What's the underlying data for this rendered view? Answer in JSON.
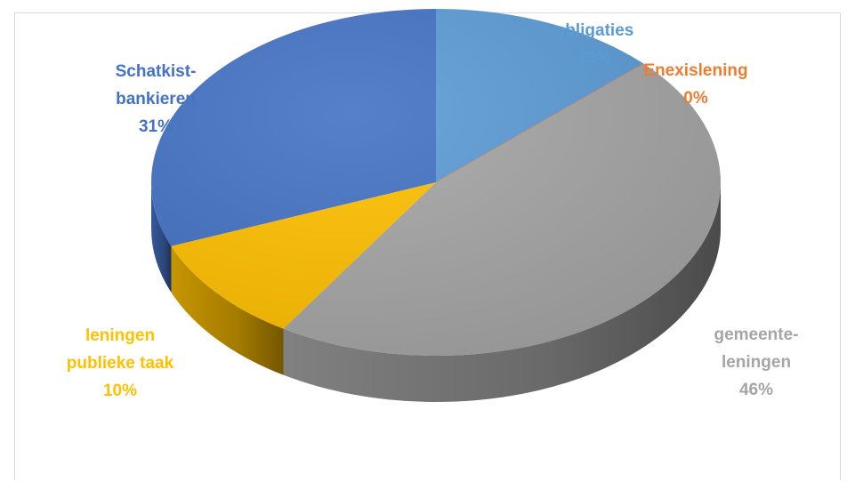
{
  "chart_data": {
    "type": "pie",
    "title": "",
    "legend": "none",
    "slices": [
      {
        "name": "obligaties",
        "label_lines": [
          "obligaties"
        ],
        "percent_label": "13%",
        "value": 13,
        "color": "#5b9bd5"
      },
      {
        "name": "Enexislening",
        "label_lines": [
          "Enexislening"
        ],
        "percent_label": "0%",
        "value": 0,
        "color": "#ed7d31"
      },
      {
        "name": "gemeente-leningen",
        "label_lines": [
          "gemeente-",
          "leningen"
        ],
        "percent_label": "46%",
        "value": 46,
        "color": "#a5a5a5"
      },
      {
        "name": "leningen publieke taak",
        "label_lines": [
          "leningen",
          "publieke taak"
        ],
        "percent_label": "10%",
        "value": 10,
        "color": "#ffc000"
      },
      {
        "name": "Schatkist-bankieren",
        "label_lines": [
          "Schatkist-",
          "bankieren"
        ],
        "percent_label": "31%",
        "value": 31,
        "color": "#4472c4"
      }
    ]
  }
}
